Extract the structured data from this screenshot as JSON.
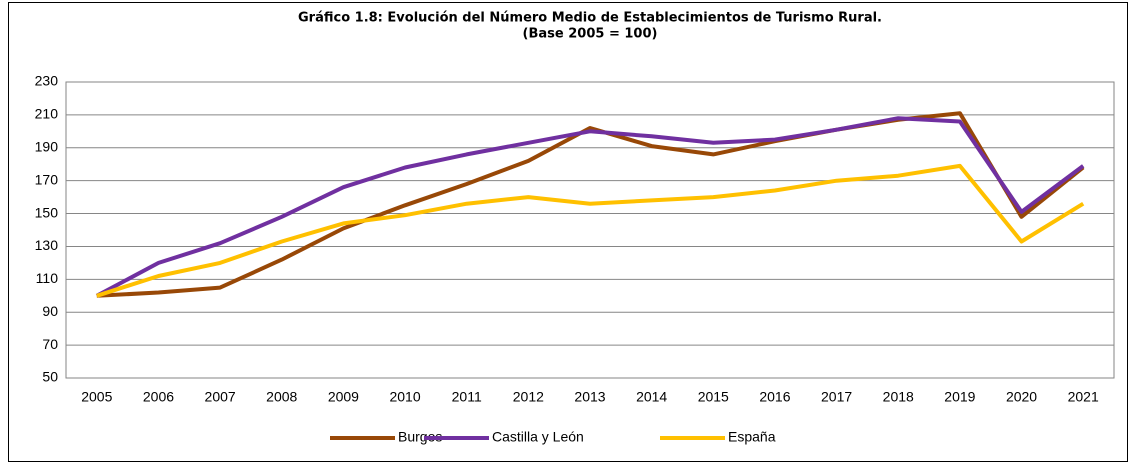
{
  "chart_data": {
    "type": "line",
    "title": "Gráfico 1.8: Evolución del Número Medio de Establecimientos de Turismo Rural.",
    "subtitle": "(Base 2005 = 100)",
    "categories": [
      "2005",
      "2006",
      "2007",
      "2008",
      "2009",
      "2010",
      "2011",
      "2012",
      "2013",
      "2014",
      "2015",
      "2016",
      "2017",
      "2018",
      "2019",
      "2020",
      "2021"
    ],
    "series": [
      {
        "name": "Burgos",
        "color": "#984807",
        "values": [
          100,
          102,
          105,
          122,
          141,
          155,
          168,
          182,
          202,
          191,
          186,
          194,
          201,
          207,
          211,
          148,
          178
        ]
      },
      {
        "name": "Castilla y León",
        "color": "#7030a0",
        "values": [
          100,
          120,
          132,
          148,
          166,
          178,
          186,
          193,
          200,
          197,
          193,
          195,
          201,
          208,
          206,
          151,
          179
        ]
      },
      {
        "name": "España",
        "color": "#ffc000",
        "values": [
          100,
          112,
          120,
          133,
          144,
          149,
          156,
          160,
          156,
          158,
          160,
          164,
          170,
          173,
          179,
          133,
          156
        ]
      }
    ],
    "ylim": [
      50,
      230
    ],
    "yticks": [
      50,
      70,
      90,
      110,
      130,
      150,
      170,
      190,
      210,
      230
    ],
    "grid": true,
    "legend": "bottom"
  }
}
